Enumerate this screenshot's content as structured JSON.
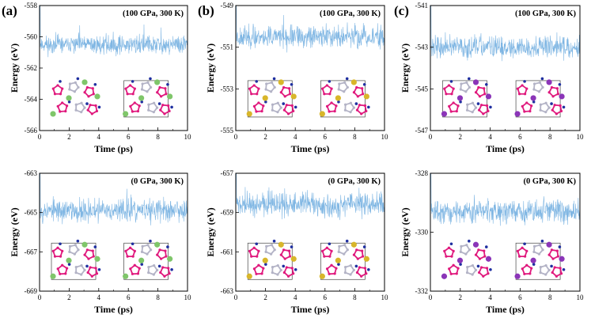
{
  "panel_labels": [
    "(a)",
    "(b)",
    "(c)"
  ],
  "chart_data": [
    {
      "type": "line",
      "id": "a-top",
      "title": "(100 GPa, 300 K)",
      "xlabel": "Time (ps)",
      "ylabel": "Energy (eV)",
      "xlim": [
        0,
        10
      ],
      "ylim": [
        -566,
        -558
      ],
      "xticks": [
        0,
        2,
        4,
        6,
        8,
        10
      ],
      "yticks": [
        -566,
        -564,
        -562,
        -560,
        -558
      ],
      "series": [
        {
          "name": "energy",
          "color": "#7fb6e3",
          "mean": -560.5,
          "amplitude": 0.45,
          "seed": 11,
          "initial_spike": -558.3,
          "n_points": 520
        }
      ],
      "insets": [
        {
          "atoms": [
            {
              "element": "N",
              "color": "#e0197d"
            },
            {
              "element": "X",
              "color": "#7fc66a"
            },
            {
              "element": "N",
              "color": "#b3b3c6"
            },
            {
              "element": "N",
              "color": "#1f2fa0"
            }
          ]
        },
        {
          "atoms": [
            {
              "element": "N",
              "color": "#e0197d"
            },
            {
              "element": "X",
              "color": "#7fc66a"
            },
            {
              "element": "N",
              "color": "#b3b3c6"
            },
            {
              "element": "N",
              "color": "#1f2fa0"
            }
          ],
          "cell": true
        }
      ]
    },
    {
      "type": "line",
      "id": "b-top",
      "title": "(100 GPa, 300 K)",
      "xlabel": "Time (ps)",
      "ylabel": "Energy (eV)",
      "xlim": [
        0,
        10
      ],
      "ylim": [
        -555,
        -549
      ],
      "xticks": [
        0,
        2,
        4,
        6,
        8,
        10
      ],
      "yticks": [
        -555,
        -553,
        -551,
        -549
      ],
      "series": [
        {
          "name": "energy",
          "color": "#7fb6e3",
          "mean": -550.5,
          "amplitude": 0.4,
          "seed": 23,
          "initial_spike": -549.2,
          "n_points": 520
        }
      ],
      "insets": [
        {
          "atoms": [
            {
              "element": "N",
              "color": "#e0197d"
            },
            {
              "element": "X",
              "color": "#d8b62a"
            },
            {
              "element": "N",
              "color": "#b3b3c6"
            },
            {
              "element": "N",
              "color": "#1f2fa0"
            }
          ],
          "cell": true
        },
        {
          "atoms": [
            {
              "element": "N",
              "color": "#e0197d"
            },
            {
              "element": "X",
              "color": "#d8b62a"
            },
            {
              "element": "N",
              "color": "#b3b3c6"
            },
            {
              "element": "N",
              "color": "#1f2fa0"
            }
          ],
          "cell": true
        }
      ]
    },
    {
      "type": "line",
      "id": "c-top",
      "title": "(100 GPa, 300 K)",
      "xlabel": "Time (ps)",
      "ylabel": "Energy (eV)",
      "xlim": [
        0,
        10
      ],
      "ylim": [
        -547,
        -541
      ],
      "xticks": [
        0,
        2,
        4,
        6,
        8,
        10
      ],
      "yticks": [
        -547,
        -545,
        -543,
        -541
      ],
      "series": [
        {
          "name": "energy",
          "color": "#7fb6e3",
          "mean": -543.0,
          "amplitude": 0.4,
          "seed": 37,
          "initial_spike": -541.3,
          "n_points": 520
        }
      ],
      "insets": [
        {
          "atoms": [
            {
              "element": "N",
              "color": "#e0197d"
            },
            {
              "element": "X",
              "color": "#8b35b8"
            },
            {
              "element": "N",
              "color": "#b3b3c6"
            },
            {
              "element": "N",
              "color": "#1f2fa0"
            }
          ],
          "cell": true
        },
        {
          "atoms": [
            {
              "element": "N",
              "color": "#e0197d"
            },
            {
              "element": "X",
              "color": "#8b35b8"
            },
            {
              "element": "N",
              "color": "#b3b3c6"
            },
            {
              "element": "N",
              "color": "#1f2fa0"
            }
          ],
          "cell": true
        }
      ]
    },
    {
      "type": "line",
      "id": "a-bottom",
      "title": "(0 GPa, 300 K)",
      "xlabel": "Time (ps)",
      "ylabel": "Energy (eV)",
      "xlim": [
        0,
        10
      ],
      "ylim": [
        -669,
        -663
      ],
      "xticks": [
        0,
        2,
        4,
        6,
        8,
        10
      ],
      "yticks": [
        -669,
        -667,
        -665,
        -663
      ],
      "series": [
        {
          "name": "energy",
          "color": "#7fb6e3",
          "mean": -664.9,
          "amplitude": 0.45,
          "seed": 53,
          "initial_spike": -663.3,
          "n_points": 520
        }
      ],
      "insets": [
        {
          "atoms": [
            {
              "element": "N",
              "color": "#e0197d"
            },
            {
              "element": "X",
              "color": "#7fc66a"
            },
            {
              "element": "N",
              "color": "#b3b3c6"
            },
            {
              "element": "N",
              "color": "#1f2fa0"
            }
          ],
          "cell": true
        },
        {
          "atoms": [
            {
              "element": "N",
              "color": "#e0197d"
            },
            {
              "element": "X",
              "color": "#7fc66a"
            },
            {
              "element": "N",
              "color": "#b3b3c6"
            },
            {
              "element": "N",
              "color": "#1f2fa0"
            }
          ],
          "cell": true
        }
      ]
    },
    {
      "type": "line",
      "id": "b-bottom",
      "title": "(0 GPa, 300 K)",
      "xlabel": "Time (ps)",
      "ylabel": "Energy (eV)",
      "xlim": [
        0,
        10
      ],
      "ylim": [
        -663,
        -657
      ],
      "xticks": [
        0,
        2,
        4,
        6,
        8,
        10
      ],
      "yticks": [
        -663,
        -661,
        -659,
        -657
      ],
      "series": [
        {
          "name": "energy",
          "color": "#7fb6e3",
          "mean": -658.6,
          "amplitude": 0.45,
          "seed": 71,
          "initial_spike": -657.4,
          "n_points": 520
        }
      ],
      "insets": [
        {
          "atoms": [
            {
              "element": "N",
              "color": "#e0197d"
            },
            {
              "element": "X",
              "color": "#d8b62a"
            },
            {
              "element": "N",
              "color": "#b3b3c6"
            },
            {
              "element": "N",
              "color": "#1f2fa0"
            }
          ],
          "cell": true
        },
        {
          "atoms": [
            {
              "element": "N",
              "color": "#e0197d"
            },
            {
              "element": "X",
              "color": "#d8b62a"
            },
            {
              "element": "N",
              "color": "#b3b3c6"
            },
            {
              "element": "N",
              "color": "#1f2fa0"
            }
          ],
          "cell": true
        }
      ]
    },
    {
      "type": "line",
      "id": "c-bottom",
      "title": "(0 GPa, 300 K)",
      "xlabel": "Time (ps)",
      "ylabel": "Energy (eV)",
      "xlim": [
        0,
        10
      ],
      "ylim": [
        -332,
        -328
      ],
      "xticks": [
        0,
        2,
        4,
        6,
        8,
        10
      ],
      "yticks": [
        -332,
        -330,
        -328
      ],
      "series": [
        {
          "name": "energy",
          "color": "#7fb6e3",
          "mean": -329.3,
          "amplitude": 0.3,
          "seed": 89,
          "initial_spike": -328.0,
          "n_points": 520
        }
      ],
      "insets": [
        {
          "atoms": [
            {
              "element": "N",
              "color": "#e0197d"
            },
            {
              "element": "X",
              "color": "#8b35b8"
            },
            {
              "element": "N",
              "color": "#b3b3c6"
            },
            {
              "element": "N",
              "color": "#1f2fa0"
            }
          ]
        },
        {
          "atoms": [
            {
              "element": "N",
              "color": "#e0197d"
            },
            {
              "element": "X",
              "color": "#8b35b8"
            },
            {
              "element": "N",
              "color": "#b3b3c6"
            },
            {
              "element": "N",
              "color": "#1f2fa0"
            }
          ],
          "cell": true
        }
      ]
    }
  ]
}
